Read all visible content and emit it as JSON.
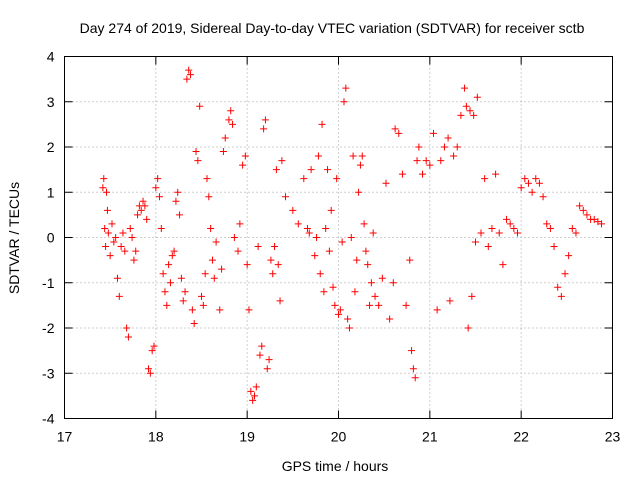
{
  "chart_data": {
    "type": "scatter",
    "title": "Day 274 of 2019, Sidereal Day-to-day VTEC variation (SDTVAR) for receiver sctb",
    "xlabel": "GPS time / hours",
    "ylabel": "SDTVAR / TECUs",
    "xlim": [
      17,
      23
    ],
    "ylim": [
      -4,
      4
    ],
    "xticks": [
      "17",
      "18",
      "19",
      "20",
      "21",
      "22",
      "23"
    ],
    "yticks": [
      "-4",
      "-3",
      "-2",
      "-1",
      "0",
      "1",
      "2",
      "3",
      "4"
    ],
    "grid": true,
    "marker": "plus",
    "color": "#ff0000",
    "series": [
      {
        "name": "SDTVAR",
        "points": [
          [
            17.42,
            1.1
          ],
          [
            17.43,
            1.3
          ],
          [
            17.44,
            0.2
          ],
          [
            17.45,
            -0.2
          ],
          [
            17.46,
            1.0
          ],
          [
            17.47,
            0.6
          ],
          [
            17.48,
            0.1
          ],
          [
            17.5,
            -0.4
          ],
          [
            17.52,
            0.3
          ],
          [
            17.54,
            -0.1
          ],
          [
            17.56,
            0.0
          ],
          [
            17.58,
            -0.9
          ],
          [
            17.6,
            -1.3
          ],
          [
            17.62,
            -0.2
          ],
          [
            17.64,
            0.1
          ],
          [
            17.66,
            -0.3
          ],
          [
            17.68,
            -2.0
          ],
          [
            17.7,
            -2.2
          ],
          [
            17.72,
            0.2
          ],
          [
            17.74,
            0.0
          ],
          [
            17.76,
            -0.5
          ],
          [
            17.78,
            -0.3
          ],
          [
            17.8,
            0.5
          ],
          [
            17.82,
            0.7
          ],
          [
            17.84,
            0.6
          ],
          [
            17.86,
            0.8
          ],
          [
            17.88,
            0.7
          ],
          [
            17.9,
            0.4
          ],
          [
            17.92,
            -2.9
          ],
          [
            17.94,
            -3.0
          ],
          [
            17.96,
            -2.5
          ],
          [
            17.98,
            -2.4
          ],
          [
            18.0,
            1.1
          ],
          [
            18.02,
            1.3
          ],
          [
            18.04,
            0.9
          ],
          [
            18.06,
            0.2
          ],
          [
            18.08,
            -0.8
          ],
          [
            18.1,
            -1.2
          ],
          [
            18.12,
            -1.5
          ],
          [
            18.14,
            -0.6
          ],
          [
            18.16,
            -1.0
          ],
          [
            18.18,
            -0.4
          ],
          [
            18.2,
            -0.3
          ],
          [
            18.22,
            0.8
          ],
          [
            18.24,
            1.0
          ],
          [
            18.26,
            0.5
          ],
          [
            18.28,
            -0.9
          ],
          [
            18.3,
            -1.4
          ],
          [
            18.32,
            -1.2
          ],
          [
            18.34,
            3.5
          ],
          [
            18.36,
            3.7
          ],
          [
            18.38,
            3.6
          ],
          [
            18.4,
            -1.6
          ],
          [
            18.42,
            -1.9
          ],
          [
            18.44,
            1.9
          ],
          [
            18.46,
            1.7
          ],
          [
            18.48,
            2.9
          ],
          [
            18.5,
            -1.3
          ],
          [
            18.52,
            -1.5
          ],
          [
            18.54,
            -0.8
          ],
          [
            18.56,
            1.3
          ],
          [
            18.58,
            0.9
          ],
          [
            18.6,
            0.2
          ],
          [
            18.62,
            -0.5
          ],
          [
            18.64,
            -0.9
          ],
          [
            18.66,
            -0.1
          ],
          [
            18.7,
            -1.6
          ],
          [
            18.72,
            -0.7
          ],
          [
            18.74,
            1.9
          ],
          [
            18.76,
            2.2
          ],
          [
            18.8,
            2.6
          ],
          [
            18.82,
            2.8
          ],
          [
            18.84,
            2.5
          ],
          [
            18.86,
            0.0
          ],
          [
            18.9,
            -0.3
          ],
          [
            18.92,
            0.3
          ],
          [
            18.95,
            1.6
          ],
          [
            18.98,
            1.8
          ],
          [
            19.0,
            -0.6
          ],
          [
            19.02,
            -1.6
          ],
          [
            19.04,
            -3.4
          ],
          [
            19.06,
            -3.6
          ],
          [
            19.08,
            -3.5
          ],
          [
            19.1,
            -3.3
          ],
          [
            19.12,
            -0.2
          ],
          [
            19.14,
            -2.6
          ],
          [
            19.16,
            -2.4
          ],
          [
            19.18,
            2.4
          ],
          [
            19.2,
            2.6
          ],
          [
            19.22,
            -2.9
          ],
          [
            19.24,
            -2.7
          ],
          [
            19.26,
            -0.5
          ],
          [
            19.28,
            -0.8
          ],
          [
            19.3,
            -0.2
          ],
          [
            19.32,
            1.5
          ],
          [
            19.34,
            -0.6
          ],
          [
            19.36,
            -1.4
          ],
          [
            19.38,
            1.7
          ],
          [
            19.42,
            0.9
          ],
          [
            19.5,
            0.6
          ],
          [
            19.56,
            0.3
          ],
          [
            19.62,
            1.3
          ],
          [
            19.66,
            0.2
          ],
          [
            19.68,
            0.1
          ],
          [
            19.7,
            1.5
          ],
          [
            19.74,
            -0.4
          ],
          [
            19.76,
            0.0
          ],
          [
            19.78,
            1.8
          ],
          [
            19.8,
            -0.8
          ],
          [
            19.82,
            2.5
          ],
          [
            19.84,
            -1.2
          ],
          [
            19.86,
            0.2
          ],
          [
            19.88,
            1.5
          ],
          [
            19.9,
            -0.3
          ],
          [
            19.92,
            0.6
          ],
          [
            19.94,
            -1.1
          ],
          [
            19.96,
            -1.5
          ],
          [
            19.98,
            1.3
          ],
          [
            20.0,
            -1.7
          ],
          [
            20.02,
            -1.6
          ],
          [
            20.04,
            -0.1
          ],
          [
            20.06,
            3.0
          ],
          [
            20.08,
            3.3
          ],
          [
            20.1,
            -1.8
          ],
          [
            20.12,
            -2.0
          ],
          [
            20.14,
            0.0
          ],
          [
            20.16,
            1.8
          ],
          [
            20.18,
            -1.2
          ],
          [
            20.2,
            -0.5
          ],
          [
            20.22,
            1.0
          ],
          [
            20.24,
            1.6
          ],
          [
            20.26,
            1.8
          ],
          [
            20.28,
            0.3
          ],
          [
            20.3,
            -0.3
          ],
          [
            20.32,
            -0.6
          ],
          [
            20.34,
            -1.5
          ],
          [
            20.36,
            -1.0
          ],
          [
            20.38,
            0.1
          ],
          [
            20.4,
            -1.3
          ],
          [
            20.44,
            -1.5
          ],
          [
            20.48,
            -0.9
          ],
          [
            20.52,
            1.2
          ],
          [
            20.56,
            -1.8
          ],
          [
            20.6,
            -1.0
          ],
          [
            20.62,
            2.4
          ],
          [
            20.66,
            2.3
          ],
          [
            20.7,
            1.4
          ],
          [
            20.74,
            -1.5
          ],
          [
            20.78,
            -0.5
          ],
          [
            20.8,
            -2.5
          ],
          [
            20.82,
            -2.9
          ],
          [
            20.84,
            -3.1
          ],
          [
            20.86,
            1.7
          ],
          [
            20.88,
            2.0
          ],
          [
            20.92,
            1.4
          ],
          [
            20.96,
            1.7
          ],
          [
            21.0,
            1.6
          ],
          [
            21.04,
            2.3
          ],
          [
            21.08,
            -1.6
          ],
          [
            21.12,
            1.7
          ],
          [
            21.16,
            2.0
          ],
          [
            21.2,
            2.2
          ],
          [
            21.22,
            -1.4
          ],
          [
            21.26,
            1.8
          ],
          [
            21.3,
            2.0
          ],
          [
            21.34,
            2.7
          ],
          [
            21.38,
            3.3
          ],
          [
            21.4,
            2.9
          ],
          [
            21.42,
            -2.0
          ],
          [
            21.44,
            2.8
          ],
          [
            21.46,
            -1.3
          ],
          [
            21.48,
            2.7
          ],
          [
            21.5,
            -0.1
          ],
          [
            21.52,
            3.1
          ],
          [
            21.56,
            0.1
          ],
          [
            21.6,
            1.3
          ],
          [
            21.64,
            -0.2
          ],
          [
            21.68,
            0.2
          ],
          [
            21.72,
            1.4
          ],
          [
            21.76,
            0.1
          ],
          [
            21.8,
            -0.6
          ],
          [
            21.84,
            0.4
          ],
          [
            21.88,
            0.3
          ],
          [
            21.92,
            0.2
          ],
          [
            21.96,
            0.1
          ],
          [
            22.0,
            1.1
          ],
          [
            22.04,
            1.3
          ],
          [
            22.08,
            1.2
          ],
          [
            22.12,
            1.0
          ],
          [
            22.16,
            1.3
          ],
          [
            22.2,
            1.2
          ],
          [
            22.24,
            0.9
          ],
          [
            22.28,
            0.3
          ],
          [
            22.32,
            0.2
          ],
          [
            22.36,
            -0.2
          ],
          [
            22.4,
            -1.1
          ],
          [
            22.44,
            -1.3
          ],
          [
            22.48,
            -0.8
          ],
          [
            22.52,
            -0.4
          ],
          [
            22.56,
            0.2
          ],
          [
            22.6,
            0.1
          ],
          [
            22.64,
            0.7
          ],
          [
            22.68,
            0.6
          ],
          [
            22.72,
            0.5
          ],
          [
            22.76,
            0.4
          ],
          [
            22.8,
            0.4
          ],
          [
            22.84,
            0.35
          ],
          [
            22.88,
            0.3
          ]
        ]
      }
    ]
  }
}
